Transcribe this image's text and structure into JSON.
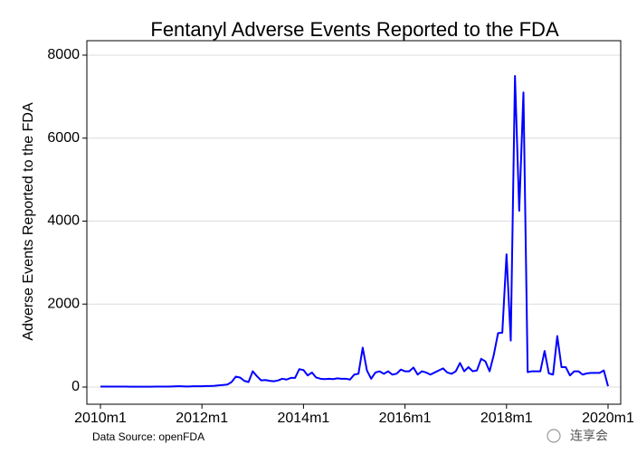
{
  "chart_data": {
    "type": "line",
    "title": "Fentanyl Adverse Events Reported to the FDA",
    "y_label": "Adverse Events Reported to the FDA",
    "source": "Data Source: openFDA",
    "watermark": "连享会",
    "color": "#0000ff",
    "grid": true,
    "x": [
      "2010m1",
      "2010m2",
      "2010m3",
      "2010m4",
      "2010m5",
      "2010m6",
      "2010m7",
      "2010m8",
      "2010m9",
      "2010m10",
      "2010m11",
      "2010m12",
      "2011m1",
      "2011m2",
      "2011m3",
      "2011m4",
      "2011m5",
      "2011m6",
      "2011m7",
      "2011m8",
      "2011m9",
      "2011m10",
      "2011m11",
      "2011m12",
      "2012m1",
      "2012m2",
      "2012m3",
      "2012m4",
      "2012m5",
      "2012m6",
      "2012m7",
      "2012m8",
      "2012m9",
      "2012m10",
      "2012m11",
      "2012m12",
      "2013m1",
      "2013m2",
      "2013m3",
      "2013m4",
      "2013m5",
      "2013m6",
      "2013m7",
      "2013m8",
      "2013m9",
      "2013m10",
      "2013m11",
      "2013m12",
      "2014m1",
      "2014m2",
      "2014m3",
      "2014m4",
      "2014m5",
      "2014m6",
      "2014m7",
      "2014m8",
      "2014m9",
      "2014m10",
      "2014m11",
      "2014m12",
      "2015m1",
      "2015m2",
      "2015m3",
      "2015m4",
      "2015m5",
      "2015m6",
      "2015m7",
      "2015m8",
      "2015m9",
      "2015m10",
      "2015m11",
      "2015m12",
      "2016m1",
      "2016m2",
      "2016m3",
      "2016m4",
      "2016m5",
      "2016m6",
      "2016m7",
      "2016m8",
      "2016m9",
      "2016m10",
      "2016m11",
      "2016m12",
      "2017m1",
      "2017m2",
      "2017m3",
      "2017m4",
      "2017m5",
      "2017m6",
      "2017m7",
      "2017m8",
      "2017m9",
      "2017m10",
      "2017m11",
      "2017m12",
      "2018m1",
      "2018m2",
      "2018m3",
      "2018m4",
      "2018m5",
      "2018m6",
      "2018m7",
      "2018m8",
      "2018m9",
      "2018m10",
      "2018m11",
      "2018m12",
      "2019m1",
      "2019m2",
      "2019m3",
      "2019m4",
      "2019m5",
      "2019m6",
      "2019m7",
      "2019m8",
      "2019m9",
      "2019m10",
      "2019m11",
      "2019m12",
      "2020m1"
    ],
    "values": [
      10,
      10,
      10,
      12,
      12,
      12,
      10,
      8,
      8,
      8,
      8,
      8,
      8,
      10,
      12,
      12,
      10,
      15,
      20,
      20,
      15,
      15,
      20,
      20,
      20,
      25,
      25,
      30,
      40,
      50,
      60,
      120,
      250,
      230,
      150,
      120,
      380,
      260,
      160,
      170,
      150,
      140,
      160,
      200,
      180,
      220,
      220,
      430,
      410,
      280,
      350,
      230,
      200,
      190,
      200,
      190,
      210,
      200,
      200,
      180,
      300,
      320,
      950,
      400,
      200,
      350,
      380,
      320,
      380,
      300,
      320,
      420,
      380,
      380,
      470,
      300,
      380,
      350,
      300,
      350,
      400,
      450,
      350,
      320,
      380,
      580,
      380,
      480,
      380,
      400,
      680,
      620,
      380,
      780,
      1300,
      1310,
      3200,
      1120,
      7500,
      4250,
      7100,
      360,
      380,
      380,
      380,
      870,
      330,
      300,
      1230,
      480,
      480,
      280,
      380,
      380,
      300,
      330,
      340,
      340,
      340,
      400,
      20
    ],
    "xticks": [
      "2010m1",
      "2012m1",
      "2014m1",
      "2016m1",
      "2018m1",
      "2020m1"
    ],
    "ylim": [
      -414,
      8349
    ],
    "yticks": [
      0,
      2000,
      4000,
      6000,
      8000
    ]
  }
}
